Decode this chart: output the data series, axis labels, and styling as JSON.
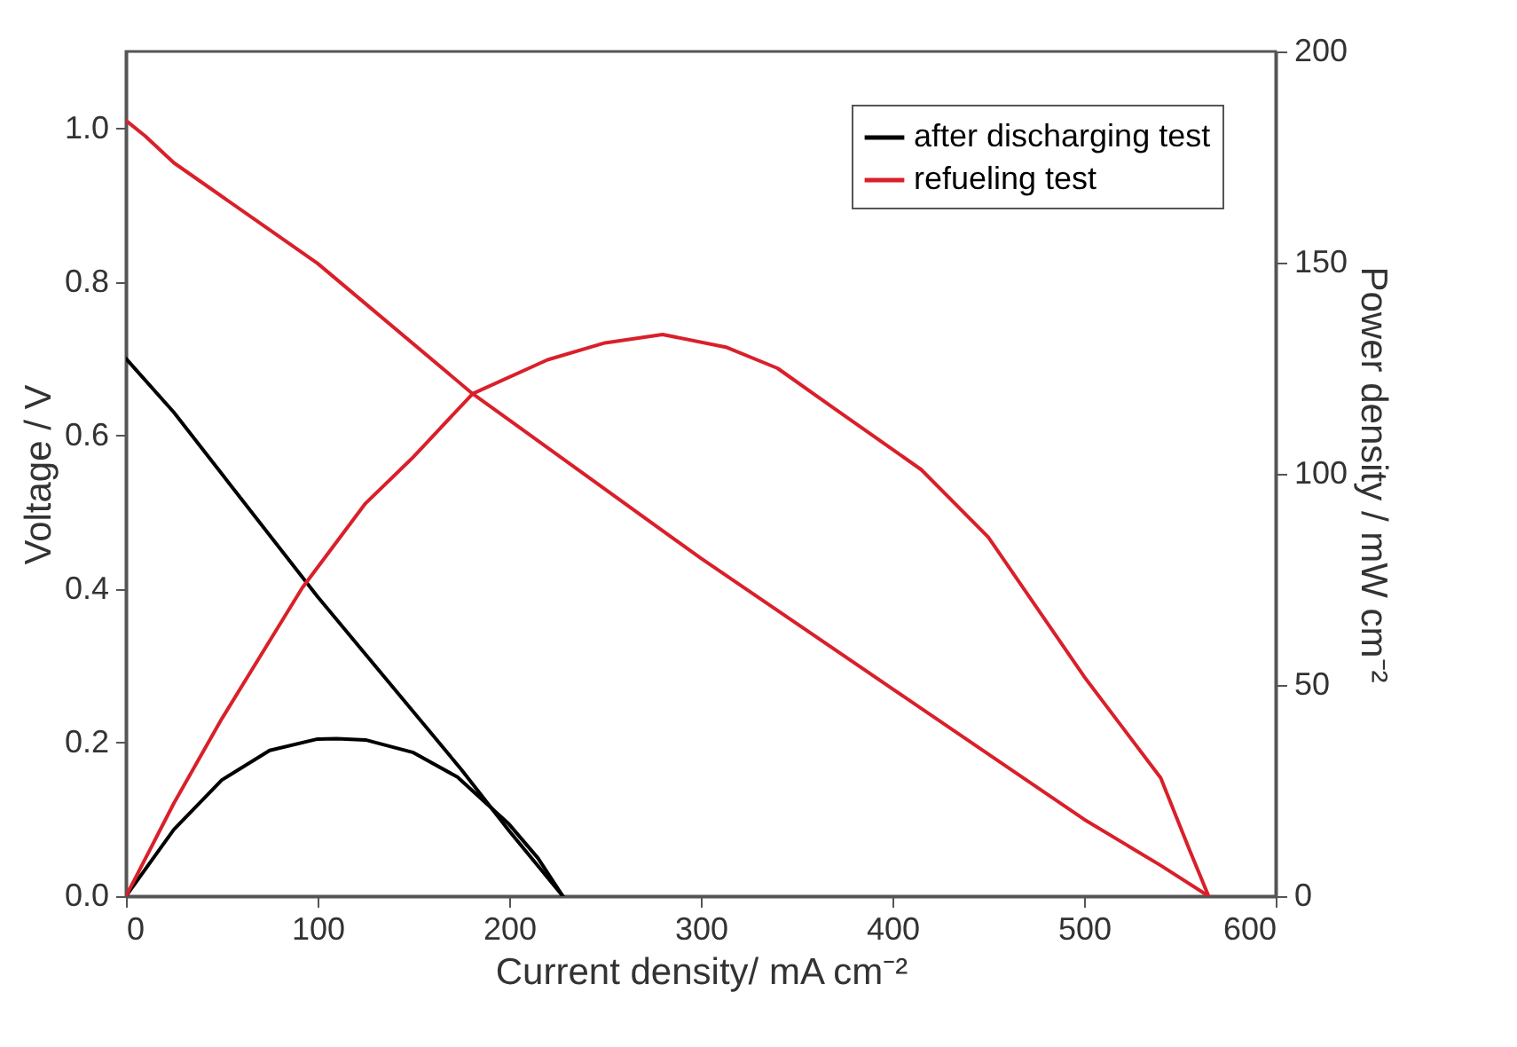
{
  "chart_data": {
    "type": "line",
    "xlabel": "Current density/ mA cm⁻²",
    "ylabel": "Voltage / V",
    "y2label": "Power density / mW cm⁻²",
    "xlim": [
      0,
      600
    ],
    "xticks": [
      0,
      100,
      200,
      300,
      400,
      500,
      600
    ],
    "ylim": [
      0,
      1.1
    ],
    "yticks": [
      {
        "value": 0,
        "label": "0.0"
      },
      {
        "value": 0.2,
        "label": "0.2"
      },
      {
        "value": 0.4,
        "label": "0.4"
      },
      {
        "value": 0.6,
        "label": "0.6"
      },
      {
        "value": 0.8,
        "label": "0.8"
      },
      {
        "value": 1,
        "label": "1.0"
      }
    ],
    "y2lim": [
      0,
      200
    ],
    "y2ticks": [
      0,
      50,
      100,
      150,
      200
    ],
    "grid": false,
    "legend": "top right",
    "series": [
      {
        "name": "after discharging test",
        "color": "#000000",
        "x": [
          0,
          25,
          50,
          100,
          150,
          175,
          200,
          228
        ],
        "values": [
          0.7,
          0.63,
          0.55,
          0.39,
          0.24,
          0.165,
          0.085,
          0
        ]
      },
      {
        "name": "refueling test",
        "color": "#d9202a",
        "x": [
          0,
          10,
          25,
          100,
          181,
          200,
          300,
          400,
          450,
          500,
          540,
          565
        ],
        "values": [
          1.01,
          0.99,
          0.955,
          0.824,
          0.654,
          0.62,
          0.44,
          0.27,
          0.185,
          0.1,
          0.04,
          0
        ]
      },
      {
        "color": "#000000",
        "axis": "y2",
        "x": [
          0,
          25,
          50,
          75,
          100,
          110,
          125,
          150,
          173,
          200,
          215,
          228
        ],
        "values": [
          0,
          15.8,
          27.5,
          34.5,
          37.2,
          37.3,
          37,
          34,
          28.2,
          17,
          9,
          0
        ]
      },
      {
        "color": "#d9202a",
        "axis": "y2",
        "x": [
          0,
          25,
          50,
          92,
          125,
          150,
          181,
          220,
          250,
          280,
          313,
          340,
          368,
          415,
          450,
          500,
          520,
          540,
          555,
          565
        ],
        "values": [
          0,
          22,
          42,
          73,
          93,
          104,
          119,
          127,
          131,
          133,
          130,
          125,
          116,
          101,
          85,
          52,
          40,
          28,
          11,
          0
        ]
      }
    ]
  }
}
